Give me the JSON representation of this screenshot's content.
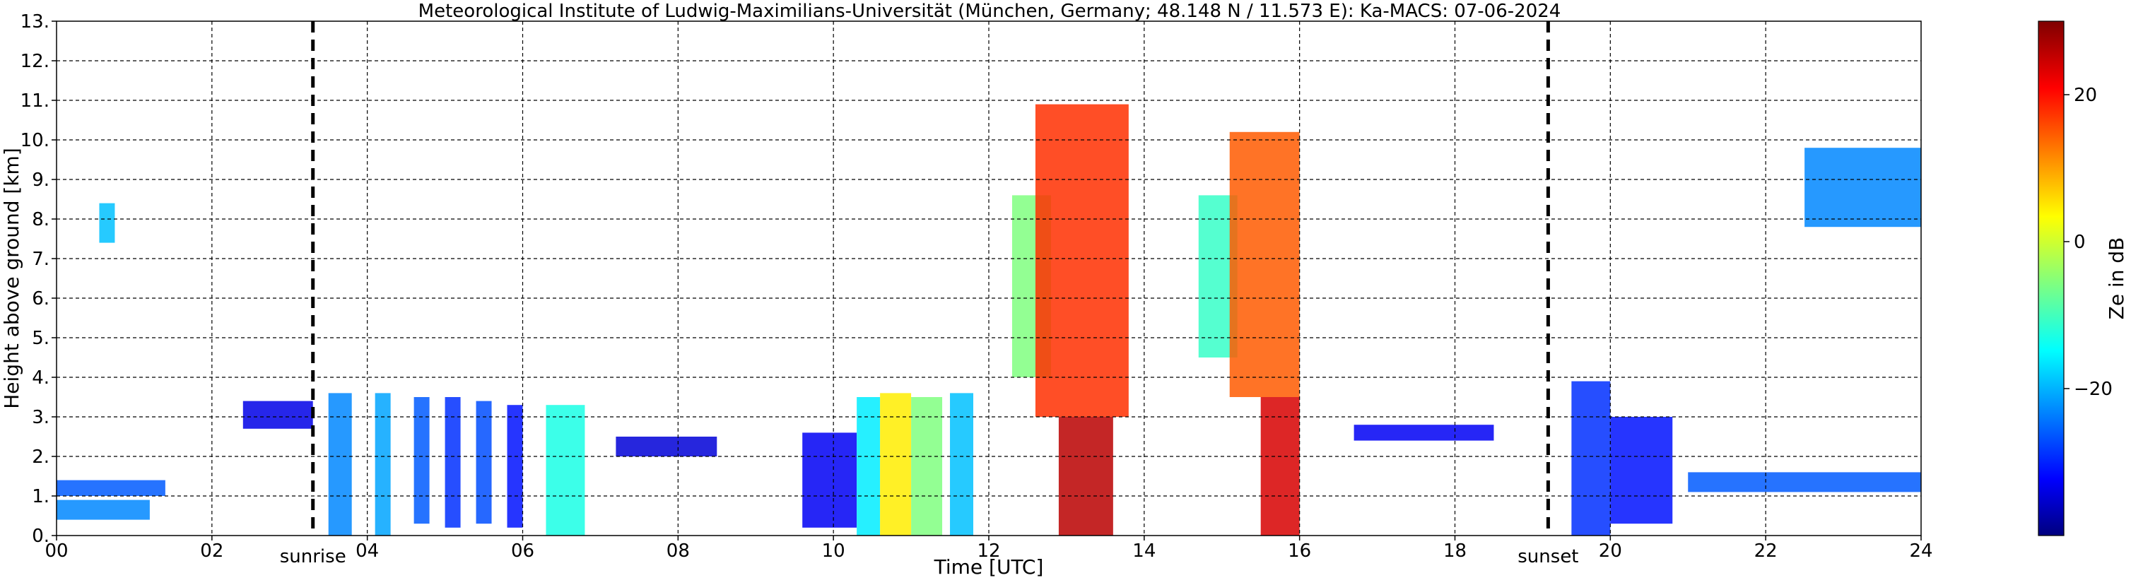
{
  "chart_data": {
    "type": "heatmap",
    "title": "Meteorological Institute of Ludwig-Maximilians-Universität (München, Germany; 48.148 N / 11.573 E):    Ka-MACS: 07-06-2024",
    "xlabel": "Time [UTC]",
    "ylabel": "Height above ground [km]",
    "xlim": [
      0,
      24
    ],
    "ylim": [
      0,
      13
    ],
    "x_ticks": [
      "00",
      "02",
      "04",
      "06",
      "08",
      "10",
      "12",
      "14",
      "16",
      "18",
      "20",
      "22",
      "24"
    ],
    "y_ticks": [
      "0.",
      "1.",
      "2.",
      "3.",
      "4.",
      "5.",
      "6.",
      "7.",
      "8.",
      "9.",
      "10.",
      "11.",
      "12.",
      "13."
    ],
    "grid": true,
    "colorbar": {
      "label": "Ze in dB",
      "range": [
        -40,
        30
      ],
      "ticks": [
        "20",
        "0",
        "−20"
      ],
      "tick_values": [
        20,
        0,
        -20
      ],
      "colormap": "jet"
    },
    "markers": [
      {
        "label": "sunrise",
        "x": 3.3
      },
      {
        "label": "sunset",
        "x": 19.2
      }
    ],
    "echoes": [
      {
        "x0": 0.0,
        "x1": 1.4,
        "y0": 1.0,
        "y1": 1.4,
        "ze": -25
      },
      {
        "x0": 0.0,
        "x1": 1.2,
        "y0": 0.4,
        "y1": 0.9,
        "ze": -22
      },
      {
        "x0": 0.55,
        "x1": 0.75,
        "y0": 7.4,
        "y1": 8.4,
        "ze": -18
      },
      {
        "x0": 2.4,
        "x1": 3.3,
        "y0": 2.7,
        "y1": 3.4,
        "ze": -33
      },
      {
        "x0": 3.5,
        "x1": 3.8,
        "y0": 0.0,
        "y1": 3.6,
        "ze": -22
      },
      {
        "x0": 4.1,
        "x1": 4.3,
        "y0": 0.0,
        "y1": 3.6,
        "ze": -20
      },
      {
        "x0": 4.6,
        "x1": 4.8,
        "y0": 0.3,
        "y1": 3.5,
        "ze": -25
      },
      {
        "x0": 5.0,
        "x1": 5.2,
        "y0": 0.2,
        "y1": 3.5,
        "ze": -28
      },
      {
        "x0": 5.4,
        "x1": 5.6,
        "y0": 0.3,
        "y1": 3.4,
        "ze": -26
      },
      {
        "x0": 5.8,
        "x1": 6.0,
        "y0": 0.2,
        "y1": 3.3,
        "ze": -30
      },
      {
        "x0": 6.3,
        "x1": 6.8,
        "y0": 0.0,
        "y1": 3.3,
        "ze": -12
      },
      {
        "x0": 7.2,
        "x1": 8.5,
        "y0": 2.0,
        "y1": 2.5,
        "ze": -34
      },
      {
        "x0": 9.6,
        "x1": 10.3,
        "y0": 0.2,
        "y1": 2.6,
        "ze": -32
      },
      {
        "x0": 10.3,
        "x1": 10.6,
        "y0": 0.0,
        "y1": 3.5,
        "ze": -15
      },
      {
        "x0": 10.6,
        "x1": 11.0,
        "y0": 0.0,
        "y1": 3.6,
        "ze": 5
      },
      {
        "x0": 11.0,
        "x1": 11.4,
        "y0": 0.0,
        "y1": 3.5,
        "ze": -5
      },
      {
        "x0": 11.5,
        "x1": 11.8,
        "y0": 0.0,
        "y1": 3.6,
        "ze": -18
      },
      {
        "x0": 12.3,
        "x1": 12.8,
        "y0": 4.0,
        "y1": 8.6,
        "ze": -5
      },
      {
        "x0": 12.6,
        "x1": 13.8,
        "y0": 3.0,
        "y1": 10.9,
        "ze": 18
      },
      {
        "x0": 12.9,
        "x1": 13.6,
        "y0": 0.0,
        "y1": 3.0,
        "ze": 26
      },
      {
        "x0": 14.7,
        "x1": 15.2,
        "y0": 4.5,
        "y1": 8.6,
        "ze": -10
      },
      {
        "x0": 15.1,
        "x1": 16.0,
        "y0": 3.5,
        "y1": 10.2,
        "ze": 15
      },
      {
        "x0": 15.5,
        "x1": 16.0,
        "y0": 0.0,
        "y1": 3.5,
        "ze": 24
      },
      {
        "x0": 16.7,
        "x1": 18.5,
        "y0": 2.4,
        "y1": 2.8,
        "ze": -32
      },
      {
        "x0": 19.5,
        "x1": 20.0,
        "y0": 0.0,
        "y1": 3.9,
        "ze": -28
      },
      {
        "x0": 20.0,
        "x1": 20.8,
        "y0": 0.3,
        "y1": 3.0,
        "ze": -30
      },
      {
        "x0": 21.0,
        "x1": 24.0,
        "y0": 1.1,
        "y1": 1.6,
        "ze": -25
      },
      {
        "x0": 22.5,
        "x1": 24.0,
        "y0": 7.8,
        "y1": 9.8,
        "ze": -22
      }
    ]
  }
}
